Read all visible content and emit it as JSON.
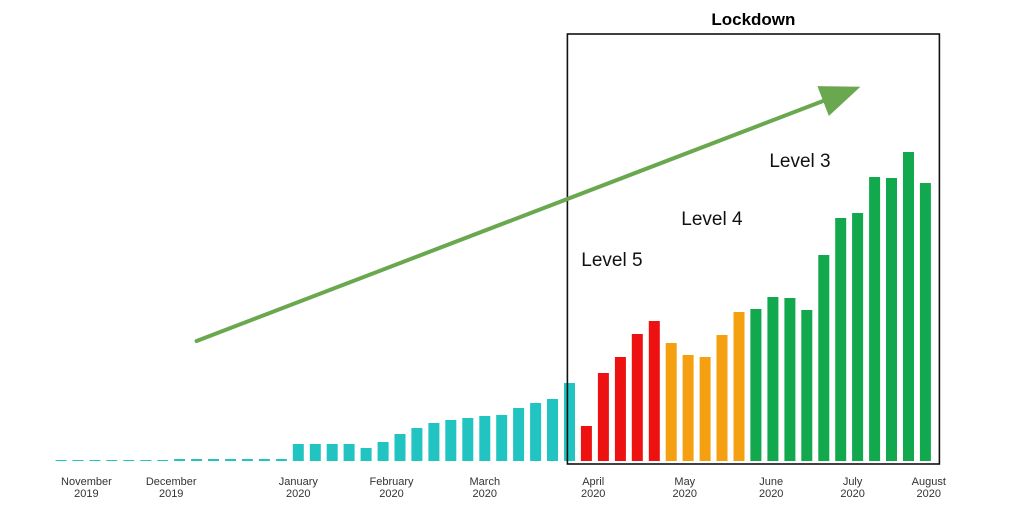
{
  "chart_data": {
    "type": "bar",
    "title": "Lockdown",
    "xlabel": "",
    "ylabel": "",
    "ylim": [
      0,
      340
    ],
    "grid": false,
    "colors": {
      "pre_lockdown": "#22C4C2",
      "level_5": "#EE1111",
      "level_4": "#F5A011",
      "level_3": "#11A84E",
      "arrow": "#6AA84F",
      "box": "#111111"
    },
    "values": [
      1,
      1,
      1,
      1,
      1,
      1,
      1,
      2,
      2,
      2,
      2,
      2,
      2,
      2,
      17,
      17,
      17,
      17,
      13,
      19,
      27,
      33,
      38,
      41,
      43,
      45,
      46,
      53,
      58,
      62,
      78,
      35,
      88,
      104,
      127,
      140,
      118,
      106,
      104,
      126,
      149,
      152,
      164,
      163,
      151,
      206,
      243,
      248,
      284,
      283,
      309,
      278
    ],
    "bar_groups": [
      "pre_lockdown",
      "pre_lockdown",
      "pre_lockdown",
      "pre_lockdown",
      "pre_lockdown",
      "pre_lockdown",
      "pre_lockdown",
      "pre_lockdown",
      "pre_lockdown",
      "pre_lockdown",
      "pre_lockdown",
      "pre_lockdown",
      "pre_lockdown",
      "pre_lockdown",
      "pre_lockdown",
      "pre_lockdown",
      "pre_lockdown",
      "pre_lockdown",
      "pre_lockdown",
      "pre_lockdown",
      "pre_lockdown",
      "pre_lockdown",
      "pre_lockdown",
      "pre_lockdown",
      "pre_lockdown",
      "pre_lockdown",
      "pre_lockdown",
      "pre_lockdown",
      "pre_lockdown",
      "pre_lockdown",
      "pre_lockdown",
      "level_5",
      "level_5",
      "level_5",
      "level_5",
      "level_5",
      "level_4",
      "level_4",
      "level_4",
      "level_4",
      "level_4",
      "level_3",
      "level_3",
      "level_3",
      "level_3",
      "level_3",
      "level_3",
      "level_3",
      "level_3",
      "level_3",
      "level_3",
      "level_3"
    ],
    "x_tick_labels": [
      {
        "month": "November",
        "year": "2019",
        "bar": 1.5
      },
      {
        "month": "December",
        "year": "2019",
        "bar": 6.5
      },
      {
        "month": "January",
        "year": "2020",
        "bar": 14
      },
      {
        "month": "February",
        "year": "2020",
        "bar": 19.5
      },
      {
        "month": "March",
        "year": "2020",
        "bar": 25
      },
      {
        "month": "April",
        "year": "2020",
        "bar": 31.4
      },
      {
        "month": "May",
        "year": "2020",
        "bar": 36.8
      },
      {
        "month": "June",
        "year": "2020",
        "bar": 41.9
      },
      {
        "month": "July",
        "year": "2020",
        "bar": 46.7
      },
      {
        "month": "August",
        "year": "2020",
        "bar": 51.2
      }
    ],
    "lockdown_range": {
      "start_bar": 31,
      "end_bar": 51
    },
    "annotations": [
      {
        "text": "Level 5",
        "bar": 32.5,
        "value": 195
      },
      {
        "text": "Level 4",
        "bar": 38.4,
        "value": 236
      },
      {
        "text": "Level 3",
        "bar": 43.6,
        "value": 294
      }
    ],
    "trend_arrow": {
      "from_bar": 8,
      "from_value": 120,
      "to_bar": 46.5,
      "to_value": 370
    }
  }
}
